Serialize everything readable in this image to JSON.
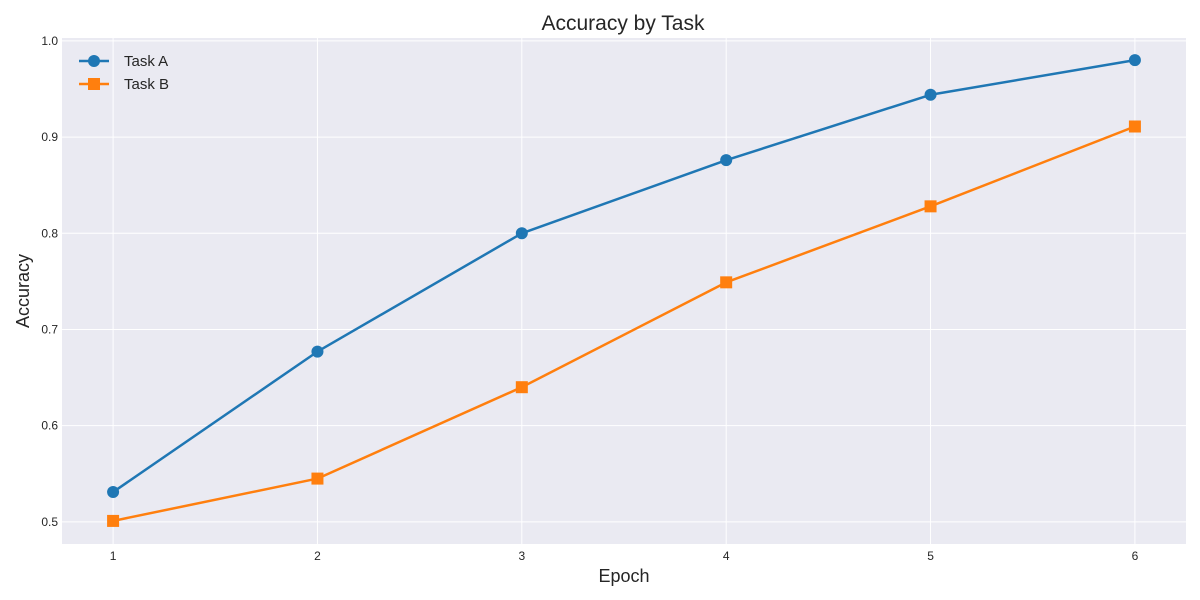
{
  "chart_data": {
    "type": "line",
    "title": "Accuracy by Task",
    "xlabel": "Epoch",
    "ylabel": "Accuracy",
    "x": [
      1,
      2,
      3,
      4,
      5,
      6
    ],
    "x_ticks": [
      "1",
      "2",
      "3",
      "4",
      "5",
      "6"
    ],
    "xlim": [
      0.75,
      6.25
    ],
    "ylim": [
      0.477,
      1.003
    ],
    "y_ticks": [
      0.5,
      0.6,
      0.7,
      0.8,
      0.9,
      1.0
    ],
    "y_tick_labels": [
      "0.5",
      "0.6",
      "0.7",
      "0.8",
      "0.9",
      "1.0"
    ],
    "grid": true,
    "legend_position": "top-left",
    "series": [
      {
        "name": "Task A",
        "values": [
          0.531,
          0.677,
          0.8,
          0.876,
          0.944,
          0.98
        ],
        "color": "#1f77b4",
        "marker": "circle"
      },
      {
        "name": "Task B",
        "values": [
          0.501,
          0.545,
          0.64,
          0.749,
          0.828,
          0.911
        ],
        "color": "#ff7f0e",
        "marker": "square"
      }
    ]
  }
}
